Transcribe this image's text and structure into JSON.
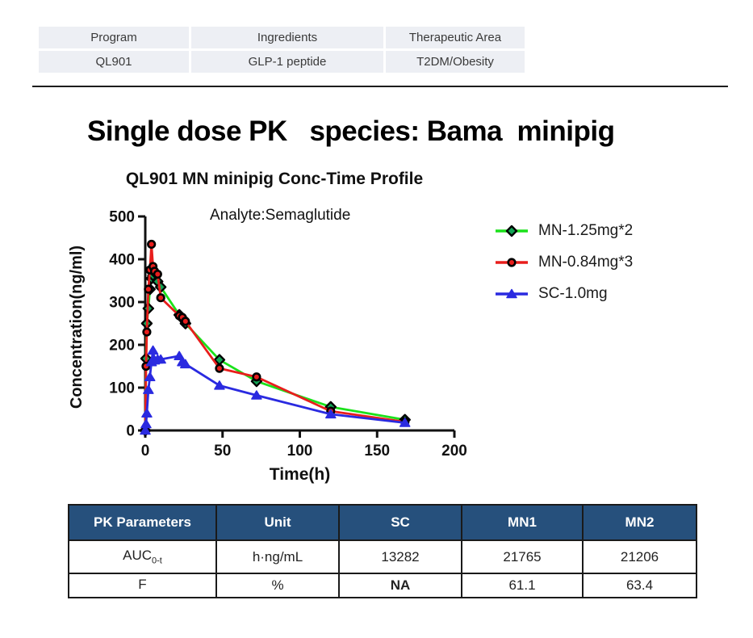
{
  "program_table": {
    "headers": [
      "Program",
      "Ingredients",
      "Therapeutic Area"
    ],
    "values": [
      "QL901",
      "GLP-1 peptide",
      "T2DM/Obesity"
    ]
  },
  "main_title": {
    "text": "Single dose PK   species: Bama  minipig"
  },
  "chart_data": {
    "type": "line",
    "title": "QL901 MN minipig Conc-Time Profile",
    "annotation": "Analyte:Semaglutide",
    "xlabel": "Time(h)",
    "ylabel": "Concentration(ng/ml)",
    "xlim": [
      0,
      200
    ],
    "ylim": [
      0,
      500
    ],
    "x_ticks": [
      0,
      50,
      100,
      150,
      200
    ],
    "y_ticks": [
      0,
      100,
      200,
      300,
      400,
      500
    ],
    "grid": false,
    "legend_position": "right",
    "x": [
      0,
      0.5,
      1,
      2,
      3,
      4,
      5,
      6,
      8,
      10,
      22,
      24,
      26,
      48,
      72,
      120,
      168
    ],
    "series": [
      {
        "name": "MN-1.25mg*2",
        "color": "#1be11b",
        "marker": "diamond",
        "marker_fill": "#12a455",
        "marker_stroke": "#000000",
        "values": [
          0,
          168,
          250,
          285,
          330,
          355,
          362,
          370,
          348,
          335,
          270,
          262,
          250,
          165,
          115,
          55,
          25
        ]
      },
      {
        "name": "MN-0.84mg*3",
        "color": "#e81e1c",
        "marker": "circle",
        "marker_fill": "#e81e1c",
        "marker_stroke": "#000000",
        "values": [
          0,
          150,
          230,
          330,
          375,
          435,
          383,
          372,
          365,
          310,
          268,
          264,
          255,
          145,
          125,
          45,
          20
        ]
      },
      {
        "name": "SC-1.0mg",
        "color": "#2a2ae0",
        "marker": "triangle",
        "marker_fill": "#2a2ae0",
        "marker_stroke": "#2a2ae0",
        "values": [
          0,
          15,
          40,
          95,
          125,
          160,
          187,
          164,
          166,
          166,
          174,
          160,
          155,
          105,
          82,
          38,
          18
        ]
      }
    ]
  },
  "pk_table": {
    "header_bg": "#26507c",
    "headers": [
      "PK Parameters",
      "Unit",
      "SC",
      "MN1",
      "MN2"
    ],
    "rows": [
      {
        "param_base": "AUC",
        "param_sub": "0-t",
        "unit": "h·ng/mL",
        "sc": "13282",
        "mn1": "21765",
        "mn2": "21206"
      },
      {
        "param_base": "F",
        "param_sub": "",
        "unit": "%",
        "sc": "NA",
        "mn1": "61.1",
        "mn2": "63.4"
      }
    ]
  },
  "colors": {
    "pk_header_bg": "#26507c",
    "divider": "#1c1c1c",
    "program_cell_bg": "#edeff4"
  }
}
